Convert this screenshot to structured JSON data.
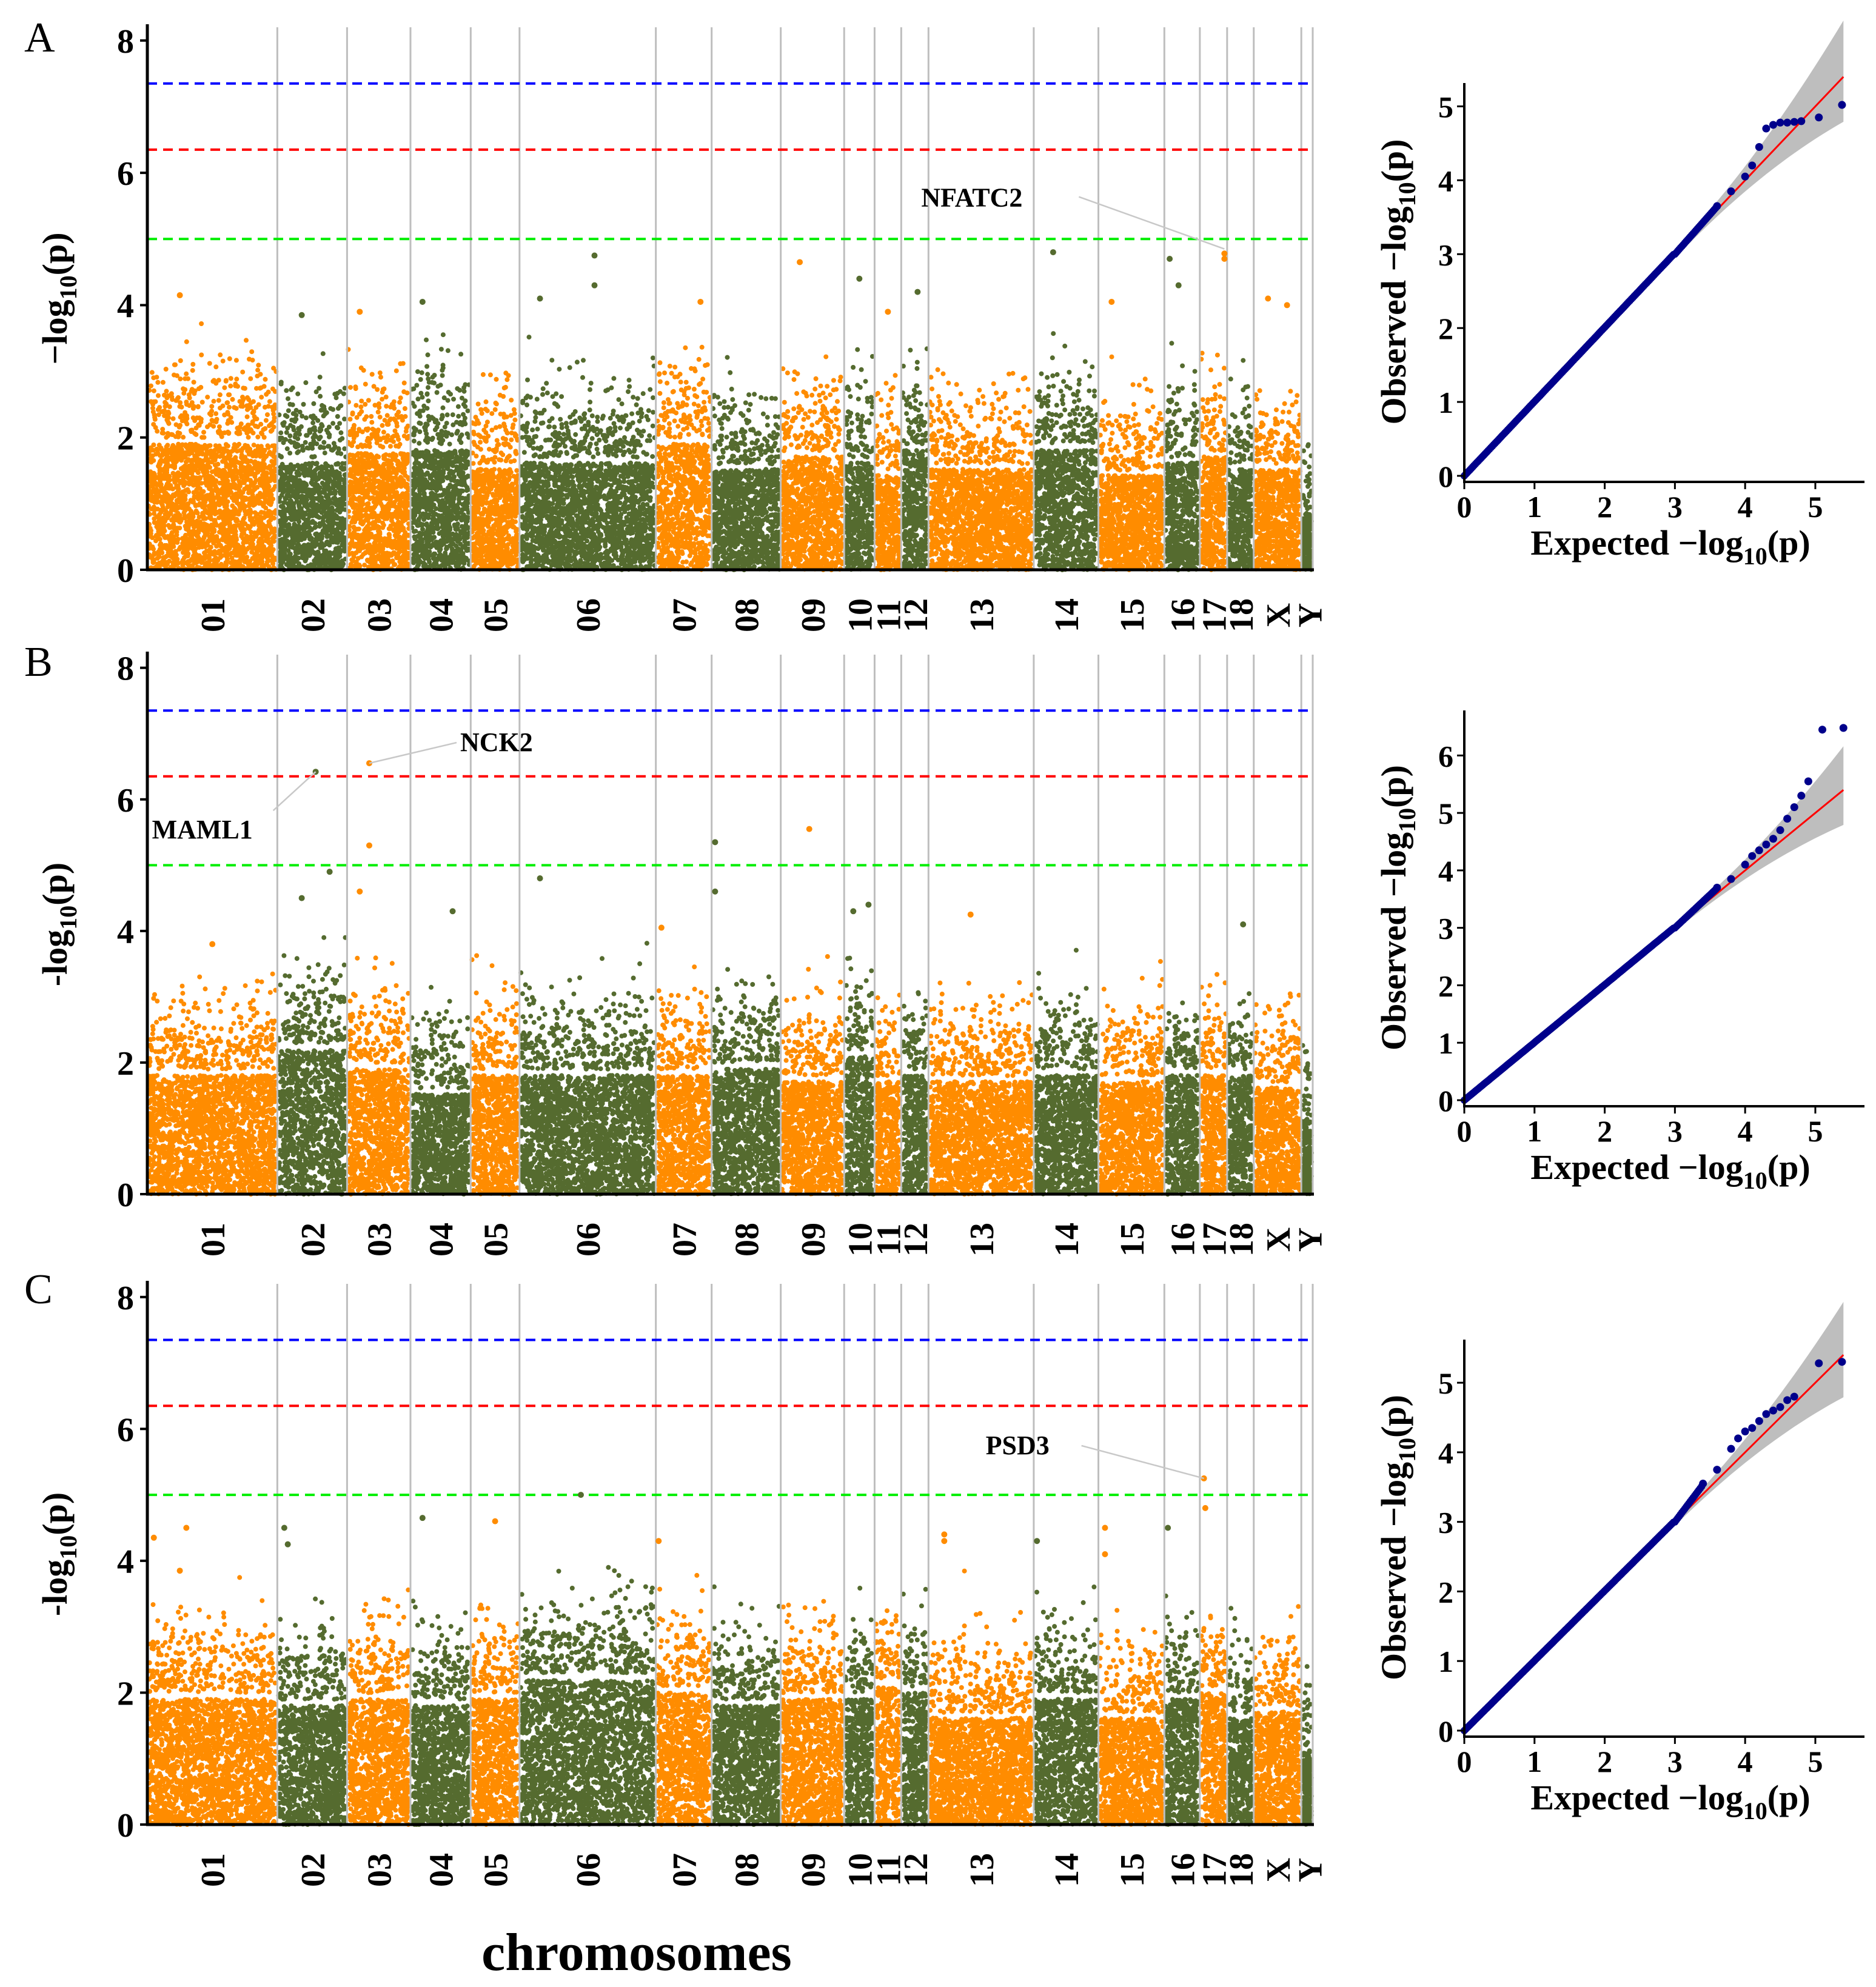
{
  "figure": {
    "xlabel": "chromosomes",
    "colors": {
      "odd": "#ff8c00",
      "even": "#556b2f",
      "line_blue": "#0000ff",
      "line_red": "#ff0000",
      "line_green": "#00ee00",
      "qq_points": "#00008b",
      "qq_band": "#bebebe",
      "qq_line": "#ff0000",
      "separator": "#bebebe"
    }
  },
  "chart_data": [
    {
      "type": "scatter",
      "panel": "A",
      "title": "",
      "ylabel_base": "−log",
      "ylabel_sub": "10",
      "ylabel_arg": "(p)",
      "ylim": [
        0,
        8.2
      ],
      "yticks": [
        0,
        2,
        4,
        6,
        8
      ],
      "chromosomes": [
        "01",
        "02",
        "03",
        "04",
        "05",
        "06",
        "07",
        "08",
        "09",
        "10",
        "11",
        "12",
        "13",
        "14",
        "15",
        "16",
        "17",
        "18",
        "X",
        "Y"
      ],
      "chrom_sizes": [
        205,
        110,
        100,
        95,
        77,
        215,
        88,
        109,
        100,
        48,
        42,
        43,
        166,
        102,
        104,
        56,
        43,
        42,
        75,
        18
      ],
      "chrom_background_level": [
        2.0,
        1.7,
        1.85,
        1.9,
        1.6,
        1.7,
        2.0,
        1.6,
        1.8,
        1.7,
        1.5,
        1.9,
        1.6,
        1.9,
        1.5,
        1.7,
        1.8,
        1.6,
        1.6,
        0.9
      ],
      "thresholds": [
        {
          "value": 7.35,
          "color": "blue"
        },
        {
          "value": 6.35,
          "color": "red"
        },
        {
          "value": 5.0,
          "color": "green"
        }
      ],
      "top_hits": [
        {
          "chrom": "01",
          "pos": 0.25,
          "y": 4.15
        },
        {
          "chrom": "02",
          "pos": 0.35,
          "y": 3.85
        },
        {
          "chrom": "03",
          "pos": 0.2,
          "y": 3.9
        },
        {
          "chrom": "04",
          "pos": 0.2,
          "y": 4.05
        },
        {
          "chrom": "06",
          "pos": 0.15,
          "y": 4.1
        },
        {
          "chrom": "06",
          "pos": 0.55,
          "y": 4.75
        },
        {
          "chrom": "06",
          "pos": 0.55,
          "y": 4.3
        },
        {
          "chrom": "07",
          "pos": 0.8,
          "y": 4.05
        },
        {
          "chrom": "09",
          "pos": 0.3,
          "y": 4.65
        },
        {
          "chrom": "10",
          "pos": 0.5,
          "y": 4.4
        },
        {
          "chrom": "11",
          "pos": 0.5,
          "y": 3.9
        },
        {
          "chrom": "12",
          "pos": 0.6,
          "y": 4.2
        },
        {
          "chrom": "14",
          "pos": 0.3,
          "y": 4.8
        },
        {
          "chrom": "15",
          "pos": 0.2,
          "y": 4.05
        },
        {
          "chrom": "16",
          "pos": 0.15,
          "y": 4.7
        },
        {
          "chrom": "16",
          "pos": 0.4,
          "y": 4.3
        },
        {
          "chrom": "17",
          "pos": 0.9,
          "y": 4.78
        },
        {
          "chrom": "17",
          "pos": 0.9,
          "y": 4.7
        },
        {
          "chrom": "X",
          "pos": 0.3,
          "y": 4.1
        },
        {
          "chrom": "X",
          "pos": 0.7,
          "y": 4.0
        }
      ],
      "annotations": [
        {
          "label": "NFATC2",
          "chrom": "17",
          "pos": 0.9,
          "y": 4.85,
          "label_anchor": "left"
        }
      ],
      "qq": {
        "xlabel_base": "Expected −log",
        "ylabel_base": "Observed −log",
        "sub": "10",
        "arg": "(p)",
        "xlim": [
          0,
          5.7
        ],
        "ylim": [
          0,
          5.25
        ],
        "xticks": [
          0,
          1,
          2,
          3,
          4,
          5
        ],
        "yticks": [
          0,
          1,
          2,
          3,
          4,
          5
        ],
        "max_expected": 5.4,
        "tail_points": [
          [
            3.6,
            3.65
          ],
          [
            3.8,
            3.85
          ],
          [
            4.0,
            4.05
          ],
          [
            4.1,
            4.2
          ],
          [
            4.2,
            4.45
          ],
          [
            4.3,
            4.7
          ],
          [
            4.4,
            4.75
          ],
          [
            4.5,
            4.78
          ],
          [
            4.6,
            4.78
          ],
          [
            4.7,
            4.79
          ],
          [
            4.8,
            4.8
          ],
          [
            5.05,
            4.85
          ],
          [
            5.38,
            5.02
          ]
        ]
      }
    },
    {
      "type": "scatter",
      "panel": "B",
      "title": "",
      "ylabel_base": "-log",
      "ylabel_sub": "10",
      "ylabel_arg": "(p)",
      "ylim": [
        0,
        8.2
      ],
      "yticks": [
        0,
        2,
        4,
        6,
        8
      ],
      "chromosomes": [
        "01",
        "02",
        "03",
        "04",
        "05",
        "06",
        "07",
        "08",
        "09",
        "10",
        "11",
        "12",
        "13",
        "14",
        "15",
        "16",
        "17",
        "18",
        "X",
        "Y"
      ],
      "chrom_sizes": [
        205,
        110,
        100,
        95,
        77,
        215,
        88,
        109,
        100,
        48,
        42,
        43,
        166,
        102,
        104,
        56,
        43,
        42,
        75,
        18
      ],
      "chrom_background_level": [
        1.9,
        2.3,
        2.0,
        1.6,
        1.9,
        1.9,
        1.9,
        2.0,
        1.8,
        2.2,
        1.8,
        1.9,
        1.8,
        1.9,
        1.8,
        1.9,
        1.9,
        1.9,
        1.7,
        1.2
      ],
      "thresholds": [
        {
          "value": 7.35,
          "color": "blue"
        },
        {
          "value": 6.35,
          "color": "red"
        },
        {
          "value": 5.0,
          "color": "green"
        }
      ],
      "top_hits": [
        {
          "chrom": "01",
          "pos": 0.5,
          "y": 3.8
        },
        {
          "chrom": "02",
          "pos": 0.35,
          "y": 4.5
        },
        {
          "chrom": "02",
          "pos": 0.55,
          "y": 6.42
        },
        {
          "chrom": "02",
          "pos": 0.75,
          "y": 4.9
        },
        {
          "chrom": "03",
          "pos": 0.35,
          "y": 6.55
        },
        {
          "chrom": "03",
          "pos": 0.35,
          "y": 5.3
        },
        {
          "chrom": "03",
          "pos": 0.2,
          "y": 4.6
        },
        {
          "chrom": "04",
          "pos": 0.7,
          "y": 4.3
        },
        {
          "chrom": "06",
          "pos": 0.15,
          "y": 4.8
        },
        {
          "chrom": "07",
          "pos": 0.1,
          "y": 4.05
        },
        {
          "chrom": "08",
          "pos": 0.05,
          "y": 5.35
        },
        {
          "chrom": "08",
          "pos": 0.05,
          "y": 4.6
        },
        {
          "chrom": "09",
          "pos": 0.45,
          "y": 5.55
        },
        {
          "chrom": "10",
          "pos": 0.3,
          "y": 4.3
        },
        {
          "chrom": "10",
          "pos": 0.8,
          "y": 4.4
        },
        {
          "chrom": "13",
          "pos": 0.4,
          "y": 4.25
        },
        {
          "chrom": "18",
          "pos": 0.6,
          "y": 4.1
        }
      ],
      "annotations": [
        {
          "label": "NCK2",
          "chrom": "03",
          "pos": 0.35,
          "y": 6.55,
          "label_anchor": "right"
        },
        {
          "label": "MAML1",
          "chrom": "02",
          "pos": 0.55,
          "y": 6.42,
          "label_anchor": "below-left"
        }
      ],
      "qq": {
        "xlabel_base": "Expected −log",
        "ylabel_base": "Observed −log",
        "sub": "10",
        "arg": "(p)",
        "xlim": [
          0,
          5.7
        ],
        "ylim": [
          0,
          6.7
        ],
        "xticks": [
          0,
          1,
          2,
          3,
          4,
          5
        ],
        "yticks": [
          0,
          1,
          2,
          3,
          4,
          5,
          6
        ],
        "max_expected": 5.4,
        "tail_points": [
          [
            3.6,
            3.7
          ],
          [
            3.8,
            3.85
          ],
          [
            4.0,
            4.1
          ],
          [
            4.1,
            4.25
          ],
          [
            4.2,
            4.35
          ],
          [
            4.3,
            4.45
          ],
          [
            4.4,
            4.55
          ],
          [
            4.5,
            4.7
          ],
          [
            4.6,
            4.9
          ],
          [
            4.7,
            5.1
          ],
          [
            4.8,
            5.3
          ],
          [
            4.9,
            5.55
          ],
          [
            5.1,
            6.45
          ],
          [
            5.4,
            6.48
          ]
        ]
      }
    },
    {
      "type": "scatter",
      "panel": "C",
      "title": "",
      "ylabel_base": "-log",
      "ylabel_sub": "10",
      "ylabel_arg": "(p)",
      "ylim": [
        0,
        8.2
      ],
      "yticks": [
        0,
        2,
        4,
        6,
        8
      ],
      "chromosomes": [
        "01",
        "02",
        "03",
        "04",
        "05",
        "06",
        "07",
        "08",
        "09",
        "10",
        "11",
        "12",
        "13",
        "14",
        "15",
        "16",
        "17",
        "18",
        "X",
        "Y"
      ],
      "chrom_sizes": [
        205,
        110,
        100,
        95,
        77,
        215,
        88,
        109,
        100,
        48,
        42,
        43,
        166,
        102,
        104,
        56,
        43,
        42,
        75,
        18
      ],
      "chrom_background_level": [
        2.0,
        1.9,
        2.0,
        1.9,
        2.0,
        2.3,
        2.1,
        1.9,
        2.0,
        2.0,
        2.2,
        2.1,
        1.7,
        2.0,
        1.7,
        2.0,
        2.1,
        1.7,
        1.8,
        1.2
      ],
      "thresholds": [
        {
          "value": 7.35,
          "color": "blue"
        },
        {
          "value": 6.35,
          "color": "red"
        },
        {
          "value": 5.0,
          "color": "green"
        }
      ],
      "top_hits": [
        {
          "chrom": "01",
          "pos": 0.05,
          "y": 4.35
        },
        {
          "chrom": "01",
          "pos": 0.3,
          "y": 4.5
        },
        {
          "chrom": "01",
          "pos": 0.25,
          "y": 3.85
        },
        {
          "chrom": "02",
          "pos": 0.1,
          "y": 4.5
        },
        {
          "chrom": "02",
          "pos": 0.15,
          "y": 4.25
        },
        {
          "chrom": "04",
          "pos": 0.2,
          "y": 4.65
        },
        {
          "chrom": "05",
          "pos": 0.5,
          "y": 4.6
        },
        {
          "chrom": "06",
          "pos": 0.45,
          "y": 5.0
        },
        {
          "chrom": "07",
          "pos": 0.05,
          "y": 4.3
        },
        {
          "chrom": "13",
          "pos": 0.15,
          "y": 4.4
        },
        {
          "chrom": "13",
          "pos": 0.15,
          "y": 4.3
        },
        {
          "chrom": "14",
          "pos": 0.05,
          "y": 4.3
        },
        {
          "chrom": "15",
          "pos": 0.1,
          "y": 4.5
        },
        {
          "chrom": "15",
          "pos": 0.1,
          "y": 4.1
        },
        {
          "chrom": "16",
          "pos": 0.1,
          "y": 4.5
        },
        {
          "chrom": "17",
          "pos": 0.15,
          "y": 5.25
        },
        {
          "chrom": "17",
          "pos": 0.2,
          "y": 4.8
        }
      ],
      "annotations": [
        {
          "label": "PSD3",
          "chrom": "17",
          "pos": 0.15,
          "y": 5.25,
          "label_anchor": "left"
        }
      ],
      "qq": {
        "xlabel_base": "Expected −log",
        "ylabel_base": "Observed −log",
        "sub": "10",
        "arg": "(p)",
        "xlim": [
          0,
          5.7
        ],
        "ylim": [
          0,
          5.55
        ],
        "xticks": [
          0,
          1,
          2,
          3,
          4,
          5
        ],
        "yticks": [
          0,
          1,
          2,
          3,
          4,
          5
        ],
        "max_expected": 5.4,
        "tail_points": [
          [
            3.4,
            3.55
          ],
          [
            3.6,
            3.75
          ],
          [
            3.8,
            4.05
          ],
          [
            3.9,
            4.2
          ],
          [
            4.0,
            4.3
          ],
          [
            4.1,
            4.35
          ],
          [
            4.2,
            4.45
          ],
          [
            4.3,
            4.55
          ],
          [
            4.4,
            4.6
          ],
          [
            4.5,
            4.65
          ],
          [
            4.6,
            4.75
          ],
          [
            4.7,
            4.8
          ],
          [
            5.05,
            5.28
          ],
          [
            5.38,
            5.3
          ]
        ]
      }
    }
  ]
}
